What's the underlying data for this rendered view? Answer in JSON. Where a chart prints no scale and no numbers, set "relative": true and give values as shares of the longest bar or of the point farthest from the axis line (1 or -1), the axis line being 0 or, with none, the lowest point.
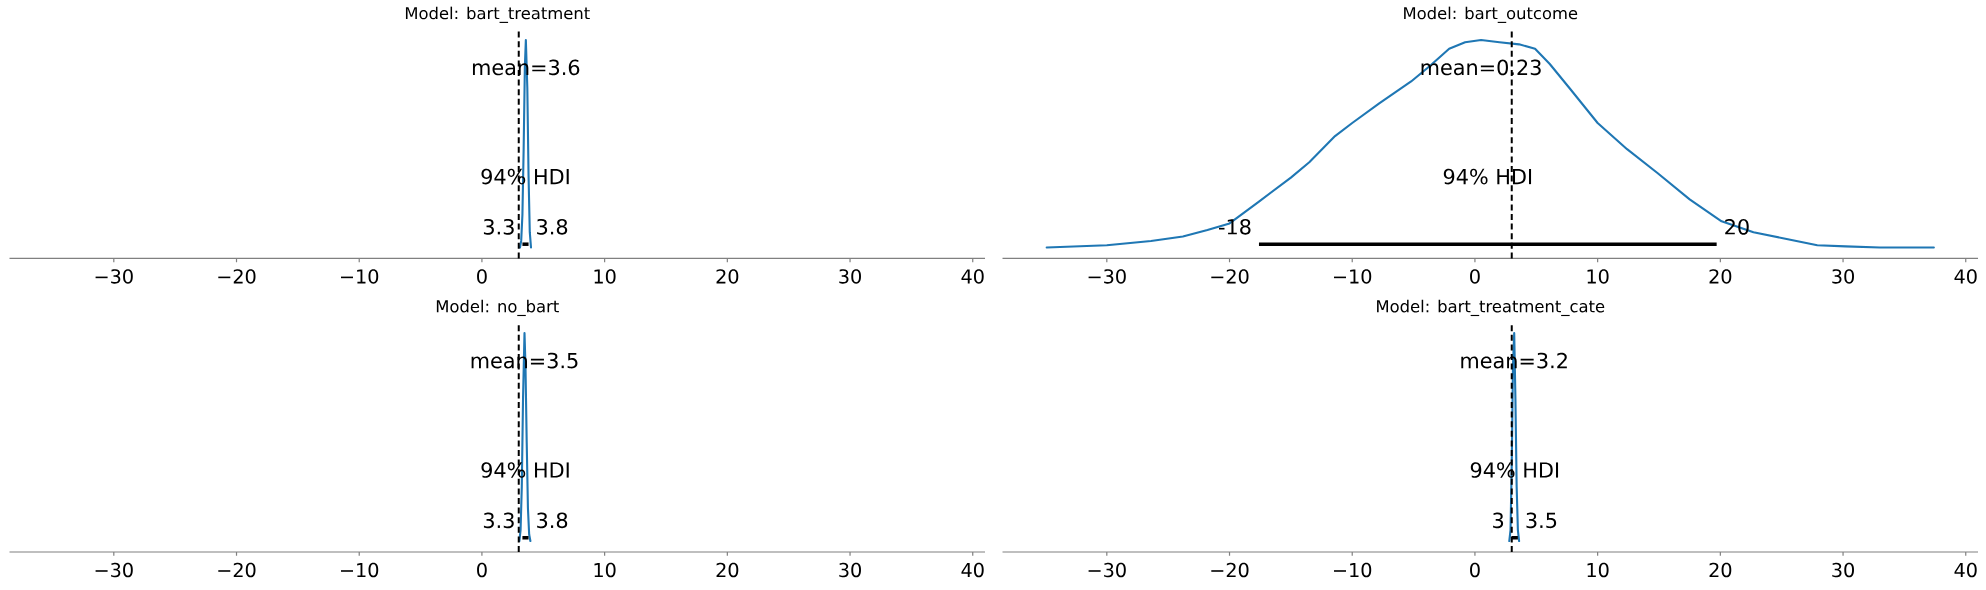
{
  "chart_data": [
    {
      "type": "line",
      "title": "Model: bart_treatment",
      "relative": true,
      "xlim": [
        -38.5,
        41.0
      ],
      "xticks": [
        {
          "value": -30,
          "label": "−30"
        },
        {
          "value": -20,
          "label": "−20"
        },
        {
          "value": -10,
          "label": "−10"
        },
        0,
        10,
        20,
        30,
        40
      ],
      "series": [
        {
          "color": "#1f77b4",
          "x": [
            3.1,
            3.2,
            3.3,
            3.4,
            3.5,
            3.58,
            3.7,
            3.8,
            3.9,
            4.0
          ],
          "values": [
            0.05,
            0.08,
            0.2,
            0.5,
            0.88,
            1.0,
            0.78,
            0.38,
            0.12,
            0.05
          ]
        },
        {
          "color": "#000000",
          "x": [
            3.3,
            3.8
          ],
          "values": [
            0.065,
            0.065
          ]
        }
      ],
      "ref_lines": [
        {
          "axis": "x",
          "value": 3,
          "color": "#000000",
          "line_style": "dashed"
        }
      ],
      "annotations": [
        "mean=3.6",
        "94% HDI",
        "3.3",
        "3.8"
      ]
    },
    {
      "type": "line",
      "title": "Model: bart_outcome",
      "relative": true,
      "xlim": [
        -38.5,
        41.0
      ],
      "xticks": [
        {
          "value": -30,
          "label": "−30"
        },
        {
          "value": -20,
          "label": "−20"
        },
        {
          "value": -10,
          "label": "−10"
        },
        0,
        10,
        20,
        30,
        40
      ],
      "series": [
        {
          "color": "#1f77b4",
          "x": [
            -34.9,
            -30,
            -26.4,
            -23.8,
            -21.8,
            -20,
            -17.6,
            -15,
            -13.5,
            -11.4,
            -10,
            -7.8,
            -5.2,
            -3.7,
            -2.1,
            -0.8,
            0.5,
            2.0,
            3.6,
            4.9,
            6.1,
            7.7,
            10,
            12.4,
            14.9,
            17.5,
            20.1,
            22.7,
            25.3,
            27.9,
            30.2,
            33,
            37.4
          ],
          "values": [
            0.05,
            0.06,
            0.08,
            0.1,
            0.13,
            0.16,
            0.26,
            0.37,
            0.44,
            0.56,
            0.62,
            0.71,
            0.81,
            0.88,
            0.96,
            0.99,
            1.0,
            0.99,
            0.98,
            0.96,
            0.89,
            0.78,
            0.62,
            0.5,
            0.39,
            0.27,
            0.17,
            0.12,
            0.09,
            0.06,
            0.055,
            0.05,
            0.05
          ]
        },
        {
          "color": "#000000",
          "x": [
            -17.6,
            19.7
          ],
          "values": [
            0.065,
            0.065
          ]
        }
      ],
      "ref_lines": [
        {
          "axis": "x",
          "value": 3,
          "color": "#000000",
          "line_style": "dashed"
        }
      ],
      "annotations": [
        "mean=0.23",
        "94% HDI",
        "-18",
        "20"
      ]
    },
    {
      "type": "line",
      "title": "Model: no_bart",
      "relative": true,
      "xlim": [
        -38.5,
        41.0
      ],
      "xticks": [
        {
          "value": -30,
          "label": "−30"
        },
        {
          "value": -20,
          "label": "−20"
        },
        {
          "value": -10,
          "label": "−10"
        },
        0,
        10,
        20,
        30,
        40
      ],
      "series": [
        {
          "color": "#1f77b4",
          "x": [
            3.05,
            3.15,
            3.25,
            3.35,
            3.47,
            3.55,
            3.65,
            3.75,
            3.85,
            3.95
          ],
          "values": [
            0.05,
            0.1,
            0.3,
            0.7,
            1.0,
            0.85,
            0.5,
            0.2,
            0.08,
            0.05
          ]
        },
        {
          "color": "#000000",
          "x": [
            3.3,
            3.8
          ],
          "values": [
            0.065,
            0.065
          ]
        }
      ],
      "ref_lines": [
        {
          "axis": "x",
          "value": 3,
          "color": "#000000",
          "line_style": "dashed"
        }
      ],
      "annotations": [
        "mean=3.5",
        "94% HDI",
        "3.3",
        "3.8"
      ]
    },
    {
      "type": "line",
      "title": "Model: bart_treatment_cate",
      "relative": true,
      "xlim": [
        -38.5,
        41.0
      ],
      "xticks": [
        {
          "value": -30,
          "label": "−30"
        },
        {
          "value": -20,
          "label": "−20"
        },
        {
          "value": -10,
          "label": "−10"
        },
        0,
        10,
        20,
        30,
        40
      ],
      "series": [
        {
          "color": "#1f77b4",
          "x": [
            2.8,
            2.9,
            3.0,
            3.1,
            3.2,
            3.3,
            3.4,
            3.5,
            3.6
          ],
          "values": [
            0.05,
            0.1,
            0.4,
            0.85,
            1.0,
            0.7,
            0.3,
            0.1,
            0.05
          ]
        },
        {
          "color": "#000000",
          "x": [
            3.0,
            3.5
          ],
          "values": [
            0.065,
            0.065
          ]
        }
      ],
      "ref_lines": [
        {
          "axis": "x",
          "value": 3,
          "color": "#000000",
          "line_style": "dashed"
        }
      ],
      "annotations": [
        "mean=3.2",
        "94% HDI",
        "3",
        "3.5"
      ]
    }
  ]
}
